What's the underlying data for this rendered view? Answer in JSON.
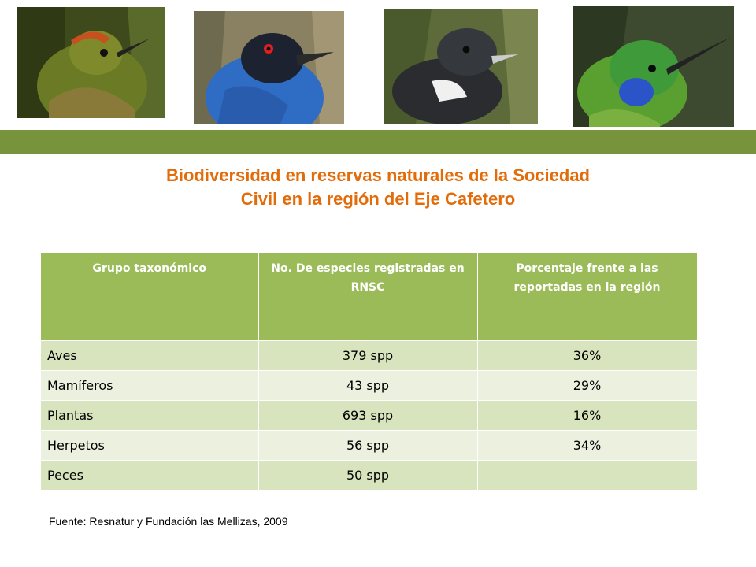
{
  "photos": [
    {
      "icon": "hummingbird-rufous-crest-photo"
    },
    {
      "icon": "blue-bird-red-eye-photo"
    },
    {
      "icon": "black-white-bird-photo"
    },
    {
      "icon": "green-hummingbird-photo"
    }
  ],
  "colors": {
    "band": "#77933c",
    "title": "#e36c0a",
    "header": "#9bbb59",
    "row_dark": "#d7e4bd",
    "row_light": "#ebf1de"
  },
  "title": {
    "line1": "Biodiversidad en reservas naturales de la Sociedad",
    "line2": "Civil en la región del Eje Cafetero"
  },
  "table": {
    "headers": [
      "Grupo taxonómico",
      "No. De especies registradas en  RNSC",
      "Porcentaje frente a las reportadas en la región"
    ],
    "rows": [
      [
        "Aves",
        "379 spp",
        "36%"
      ],
      [
        "Mamíferos",
        "43 spp",
        "29%"
      ],
      [
        "Plantas",
        "693 spp",
        "16%"
      ],
      [
        "Herpetos",
        "56 spp",
        "34%"
      ],
      [
        "Peces",
        "50 spp",
        ""
      ]
    ]
  },
  "source": "Fuente: Resnatur y Fundación las Mellizas, 2009"
}
